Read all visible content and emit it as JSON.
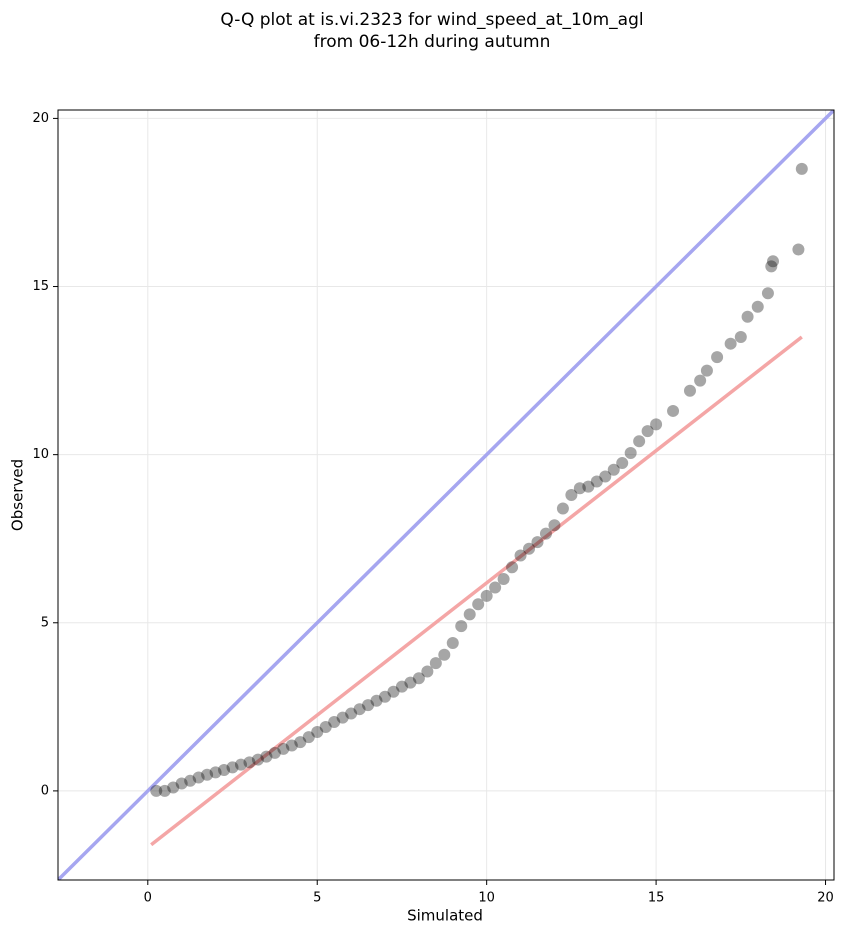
{
  "chart_data": {
    "type": "scatter",
    "title": [
      "Q-Q plot at is.vi.2323 for wind_speed_at_10m_agl",
      "from 06-12h during autumn"
    ],
    "xlabel": "Simulated",
    "ylabel": "Observed",
    "xlim": [
      -2.65,
      20.25
    ],
    "ylim": [
      -2.65,
      20.25
    ],
    "xticks": [
      0,
      5,
      10,
      15,
      20
    ],
    "yticks": [
      0,
      5,
      10,
      15,
      20
    ],
    "grid": true,
    "marker_alpha": 0.35,
    "series": [
      {
        "color": "#000000",
        "x": [
          0.25,
          0.5,
          0.75,
          1.0,
          1.25,
          1.5,
          1.75,
          2.0,
          2.25,
          2.5,
          2.75,
          3.0,
          3.25,
          3.5,
          3.75,
          4.0,
          4.25,
          4.5,
          4.75,
          5.0,
          5.25,
          5.5,
          5.75,
          6.0,
          6.25,
          6.5,
          6.75,
          7.0,
          7.25,
          7.5,
          7.75,
          8.0,
          8.25,
          8.5,
          8.75,
          9.0,
          9.25,
          9.5,
          9.75,
          10.0,
          10.25,
          10.5,
          10.75,
          11.0,
          11.25,
          11.5,
          11.75,
          12.0,
          12.25,
          12.5,
          12.75,
          13.0,
          13.25,
          13.5,
          13.75,
          14.0,
          14.25,
          14.5,
          14.75,
          15.0,
          15.5,
          16.0,
          16.3,
          16.5,
          16.8,
          17.2,
          17.5,
          17.7,
          18.0,
          18.3,
          18.4,
          18.45,
          19.2,
          19.3
        ],
        "values": [
          0.0,
          0.0,
          0.1,
          0.22,
          0.3,
          0.4,
          0.48,
          0.55,
          0.62,
          0.7,
          0.78,
          0.85,
          0.93,
          1.02,
          1.13,
          1.25,
          1.35,
          1.45,
          1.6,
          1.75,
          1.9,
          2.05,
          2.18,
          2.3,
          2.43,
          2.55,
          2.68,
          2.8,
          2.95,
          3.1,
          3.22,
          3.35,
          3.55,
          3.8,
          4.05,
          4.4,
          4.9,
          5.25,
          5.55,
          5.8,
          6.05,
          6.3,
          6.65,
          7.0,
          7.2,
          7.4,
          7.65,
          7.9,
          8.4,
          8.8,
          9.0,
          9.05,
          9.2,
          9.35,
          9.55,
          9.75,
          10.05,
          10.4,
          10.7,
          10.9,
          11.3,
          11.9,
          12.2,
          12.5,
          12.9,
          13.3,
          13.5,
          14.1,
          14.4,
          14.8,
          15.6,
          15.75,
          16.1,
          18.5
        ]
      }
    ],
    "lines": [
      {
        "color": "#a6a6f0",
        "x": [
          -2.65,
          20.25
        ],
        "values": [
          -2.65,
          20.25
        ]
      },
      {
        "color": "#f4a6a6",
        "x": [
          0.1,
          19.3
        ],
        "values": [
          -1.6,
          13.5
        ]
      }
    ]
  }
}
